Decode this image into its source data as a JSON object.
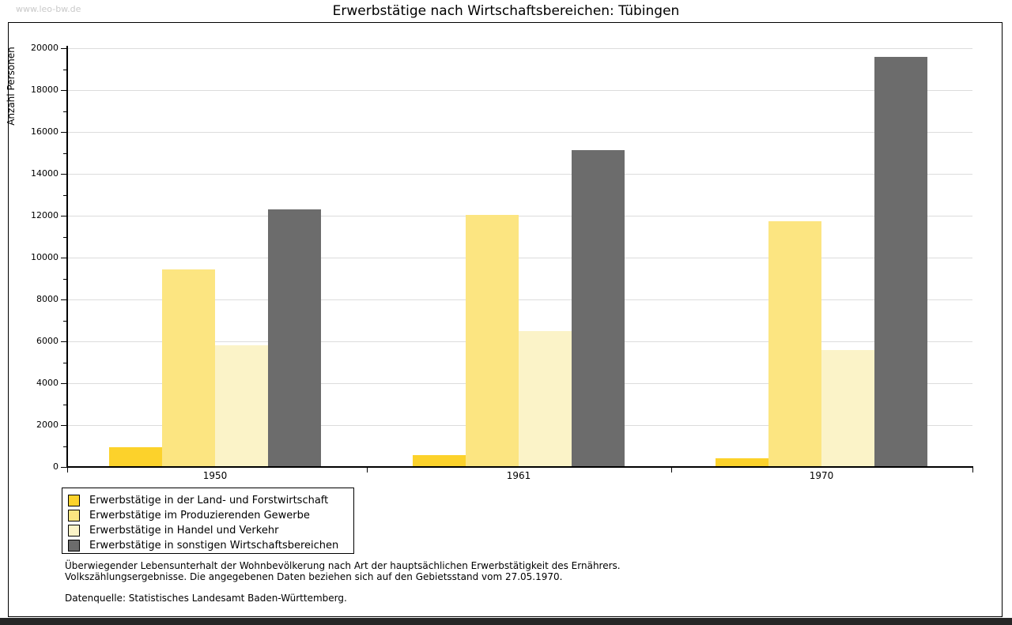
{
  "page": {
    "watermark": "www.leo-bw.de"
  },
  "chart_data": {
    "type": "bar",
    "title": "Erwerbstätige nach Wirtschaftsbereichen: Tübingen",
    "ylabel": "Anzahl Personen",
    "xlabel": "",
    "ylim": [
      0,
      20000
    ],
    "ytick_step": 2000,
    "yminor_tick_step": 1000,
    "grid": "horizontal major gridlines",
    "legend_position": "bottom-left box",
    "categories": [
      "1950",
      "1961",
      "1970"
    ],
    "series": [
      {
        "name": "Erwerbstätige in der Land- und Forstwirtschaft",
        "color": "#FCD22B",
        "values": [
          950,
          570,
          400
        ]
      },
      {
        "name": "Erwerbstätige im Produzierenden Gewerbe",
        "color": "#FCE581",
        "values": [
          9450,
          12050,
          11750
        ]
      },
      {
        "name": "Erwerbstätige in Handel und Verkehr",
        "color": "#FBF3C8",
        "values": [
          5800,
          6500,
          5600
        ]
      },
      {
        "name": "Erwerbstätige in sonstigen Wirtschaftsbereichen",
        "color": "#6C6C6C",
        "values": [
          12300,
          15150,
          19600
        ]
      }
    ]
  },
  "footnotes": {
    "line1": "Überwiegender Lebensunterhalt der Wohnbevölkerung nach Art der hauptsächlichen Erwerbstätigkeit des Ernährers.",
    "line2": "Volkszählungsergebnisse. Die angegebenen Daten beziehen sich auf den Gebietsstand vom 27.05.1970.",
    "source": "Datenquelle: Statistisches Landesamt Baden-Württemberg."
  },
  "colors": {
    "grid": "#DCDCDC",
    "axis": "#000000",
    "frame": "#000000",
    "watermark": "#C9C9C9",
    "bottom_bar": "#262626"
  }
}
